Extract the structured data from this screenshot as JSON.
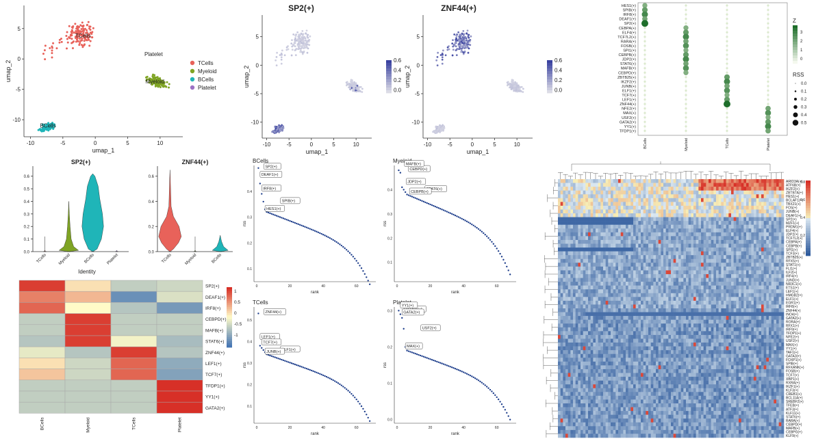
{
  "colors": {
    "tcells": "#e8625a",
    "myeloid": "#7fa424",
    "bcells": "#1fb5b8",
    "platelet": "#9b72c4",
    "rank_dot": "#1f3f8c",
    "feature_high": "#3a42a0",
    "feature_low": "#dcdce6",
    "dot_high": "#1e6e2a",
    "dot_low": "#e6f0d8",
    "heat_high": "#d73027",
    "heat_mid": "#fffbc8",
    "heat_low": "#4575b4"
  },
  "umap": {
    "xlabel": "umap_1",
    "ylabel": "umap_2",
    "xticks": [
      -10,
      -5,
      0,
      5,
      10
    ],
    "yticks": [
      5,
      0,
      -5,
      -10
    ],
    "xlim": [
      -11,
      13.5
    ],
    "ylim": [
      -12.8,
      8.8
    ],
    "clusters": [
      {
        "name": "TCells",
        "label_x": -1.9,
        "label_y": 3.5
      },
      {
        "name": "Myeloid",
        "label_x": 9.2,
        "label_y": -4.0
      },
      {
        "name": "BCells",
        "label_x": -7.3,
        "label_y": -11.3
      },
      {
        "name": "Platelet",
        "label_x": 9.0,
        "label_y": 0.5
      }
    ],
    "legend": [
      "TCells",
      "Myeloid",
      "BCells",
      "Platelet"
    ]
  },
  "feature_plots": [
    {
      "title": "SP2(+)",
      "target": "BCells",
      "legend_ticks": [
        "0.6",
        "0.4",
        "0.2",
        "0.0"
      ]
    },
    {
      "title": "ZNF44(+)",
      "target": "TCells",
      "legend_ticks": [
        "0.6",
        "0.4",
        "0.2",
        "0.0"
      ]
    }
  ],
  "dotplot": {
    "groups": [
      "BCells",
      "Myeloid",
      "TCells",
      "Platelet"
    ],
    "regulons": [
      {
        "name": "HES1(+)",
        "group": "BCells"
      },
      {
        "name": "SPIB(+)",
        "group": "BCells"
      },
      {
        "name": "IRF8(+)",
        "group": "BCells"
      },
      {
        "name": "DEAF1(+)",
        "group": "BCells"
      },
      {
        "name": "SP2(+)",
        "group": "BCells"
      },
      {
        "name": "CEBPA(+)",
        "group": "Myeloid"
      },
      {
        "name": "ELF4(+)",
        "group": "Myeloid"
      },
      {
        "name": "TCF7L2(+)",
        "group": "Myeloid"
      },
      {
        "name": "RARA(+)",
        "group": "Myeloid"
      },
      {
        "name": "FOSB(+)",
        "group": "Myeloid"
      },
      {
        "name": "SPI1(+)",
        "group": "Myeloid"
      },
      {
        "name": "CEBPB(+)",
        "group": "Myeloid"
      },
      {
        "name": "JDP2(+)",
        "group": "Myeloid"
      },
      {
        "name": "STAT6(+)",
        "group": "Myeloid"
      },
      {
        "name": "MAFB(+)",
        "group": "Myeloid"
      },
      {
        "name": "CEBPD(+)",
        "group": "Myeloid"
      },
      {
        "name": "ZBTB25(+)",
        "group": "TCells"
      },
      {
        "name": "IKZF2(+)",
        "group": "TCells"
      },
      {
        "name": "JUNB(+)",
        "group": "TCells"
      },
      {
        "name": "ELF1(+)",
        "group": "TCells"
      },
      {
        "name": "TCF7(+)",
        "group": "TCells"
      },
      {
        "name": "LEF1(+)",
        "group": "TCells"
      },
      {
        "name": "ZNF44(+)",
        "group": "TCells"
      },
      {
        "name": "NFE2(+)",
        "group": "Platelet"
      },
      {
        "name": "MAX(+)",
        "group": "Platelet"
      },
      {
        "name": "USF2(+)",
        "group": "Platelet"
      },
      {
        "name": "GATA2(+)",
        "group": "Platelet"
      },
      {
        "name": "YY1(+)",
        "group": "Platelet"
      },
      {
        "name": "TFDP1(+)",
        "group": "Platelet"
      }
    ],
    "z_title": "Z",
    "z_ticks": [
      "3",
      "2",
      "1",
      "0"
    ],
    "rss_title": "RSS",
    "rss_ticks": [
      "0.0",
      "0.1",
      "0.2",
      "0.3",
      "0.4",
      "0.5"
    ]
  },
  "violins": [
    {
      "title": "SP2(+)",
      "groups": [
        "TCells",
        "Myeloid",
        "BCells",
        "Platelet"
      ],
      "yticks": [
        "0.0",
        "0.1",
        "0.2",
        "0.3",
        "0.4",
        "0.5",
        "0.6"
      ],
      "ymax": 0.68
    },
    {
      "title": "ZNF44(+)",
      "groups": [
        "TCells",
        "Myeloid",
        "BCells"
      ],
      "yticks": [
        "0.0",
        "0.2",
        "0.4",
        "0.6"
      ],
      "ymax": 0.68
    }
  ],
  "violin_xlabel": "Identity",
  "rank_plots": [
    {
      "title": "BCells",
      "labels": [
        "SP2(+)",
        "DEAF1(+)",
        "IRF8(+)",
        "SPIB(+)",
        "HES1(+)"
      ],
      "yticks": [
        "0.1",
        "0.2",
        "0.3",
        "0.4"
      ],
      "ylim": [
        0.05,
        0.5
      ],
      "top": [
        0.49,
        0.43,
        0.39,
        0.36,
        0.33
      ],
      "end": 0.04
    },
    {
      "title": "Myeloid",
      "labels": [
        "CEBPD(+)",
        "MAFB(+)",
        "JDP2(+)",
        "STAT6(+)",
        "CEBPB(+)"
      ],
      "yticks": [
        "0.1",
        "0.2",
        "0.3",
        "0.4"
      ],
      "ylim": [
        0.02,
        0.5
      ],
      "top": [
        0.48,
        0.47,
        0.41,
        0.4,
        0.39
      ],
      "end": 0.05
    },
    {
      "title": "TCells",
      "labels": [
        "ZNF44(+)",
        "LEF1(+)",
        "TCF7(+)",
        "ELF1(+)",
        "JUNB(+)"
      ],
      "yticks": [
        "0.1",
        "0.2",
        "0.3",
        "0.4",
        "0.5"
      ],
      "ylim": [
        0.02,
        0.56
      ],
      "top": [
        0.53,
        0.38,
        0.37,
        0.36,
        0.35
      ],
      "end": 0.03
    },
    {
      "title": "Platelet",
      "labels": [
        "TFDP1(+)",
        "YY1(+)",
        "GATA2(+)",
        "USF2(+)",
        "MAX(+)"
      ],
      "yticks": [
        "0.0",
        "0.1",
        "0.2",
        "0.3"
      ],
      "ylim": [
        -0.01,
        0.31
      ],
      "top": [
        0.3,
        0.29,
        0.28,
        0.25,
        0.2
      ],
      "end": 0.0
    }
  ],
  "rank_xlabel": "rank",
  "rank_ylabel": "rss",
  "rank_xticks": [
    "0",
    "20",
    "40",
    "60"
  ],
  "heatmap": {
    "rows": [
      "SP2(+)",
      "DEAF1(+)",
      "IRF8(+)",
      "CEBPD(+)",
      "MAFB(+)",
      "STAT6(+)",
      "ZNF44(+)",
      "LEF1(+)",
      "TCF7(+)",
      "TFDP1(+)",
      "YY1(+)",
      "GATA2(+)"
    ],
    "cols": [
      "BCells",
      "Myeloid",
      "TCells",
      "Platelet"
    ],
    "values": [
      [
        1.4,
        0.2,
        -0.5,
        -0.4
      ],
      [
        0.9,
        0.5,
        -1.2,
        -0.3
      ],
      [
        1.1,
        0.0,
        -0.6,
        -1.1
      ],
      [
        -0.5,
        1.4,
        -0.5,
        -0.5
      ],
      [
        -0.5,
        1.4,
        -0.5,
        -0.5
      ],
      [
        -0.6,
        1.4,
        -0.1,
        -0.7
      ],
      [
        -0.2,
        -0.6,
        1.4,
        -0.6
      ],
      [
        0.2,
        -0.4,
        1.1,
        -0.9
      ],
      [
        0.4,
        -0.4,
        1.1,
        -1.0
      ],
      [
        -0.5,
        -0.5,
        -0.5,
        1.5
      ],
      [
        -0.5,
        -0.5,
        -0.5,
        1.5
      ],
      [
        -0.5,
        -0.5,
        -0.5,
        1.5
      ]
    ],
    "legend_ticks": [
      "1",
      "0.5",
      "0",
      "-0.5",
      "-1"
    ]
  },
  "cell_heatmap": {
    "rows": [
      "ARID3A(+)",
      "ATF6B(+)",
      "IKZF2(+)",
      "ZBTB7A(+)",
      "HES1(+)",
      "BCLAF1(+)",
      "TBX21(+)",
      "FOS(+)",
      "JUNB(+)",
      "DEAF1(+)",
      "SP2(+)",
      "MZF1(+)",
      "PRDM1(+)",
      "ELF4(+)",
      "JDP2(+)",
      "TCF7L2(+)",
      "CEBPA(+)",
      "CEBPB(+)",
      "SPI1(+)",
      "TCF3(+)",
      "ZBTB25(+)",
      "RFX5(+)",
      "STAT1(+)",
      "FLI1(+)",
      "ILF2(+)",
      "IRF4(+)",
      "JUND(+)",
      "NR3C1(+)",
      "ETS1(+)",
      "LEF1(+)",
      "HMGB2(+)",
      "ELF1(+)",
      "EGR1(+)",
      "IRF8(+)",
      "ZNF44(+)",
      "INO4(+)",
      "GATA2(+)",
      "RORA(+)",
      "RFX1(+)",
      "IRF9(+)",
      "TFDP1(+)",
      "NFE2(+)",
      "USF2(+)",
      "MAX(+)",
      "YY1(+)",
      "TAF1(+)",
      "GATA3(+)",
      "FOXP1(+)",
      "SPIB(+)",
      "RFXANK(+)",
      "FOSB(+)",
      "TCF7(+)",
      "XBP1(+)",
      "RXRA(+)",
      "IKZF1(+)",
      "KLF3(+)",
      "CREB1(+)",
      "BCL11A(+)",
      "SREBF2(+)",
      "TFEB(+)",
      "ATF3(+)",
      "KLF11(+)",
      "STAT6(+)",
      "RARA(+)",
      "CEBPD(+)",
      "MAFB(+)",
      "CEBPG(+)",
      "KLF9(+)"
    ],
    "legend_ticks": [
      "0.8",
      "0.6",
      "0.4",
      "0.2",
      "0"
    ]
  }
}
